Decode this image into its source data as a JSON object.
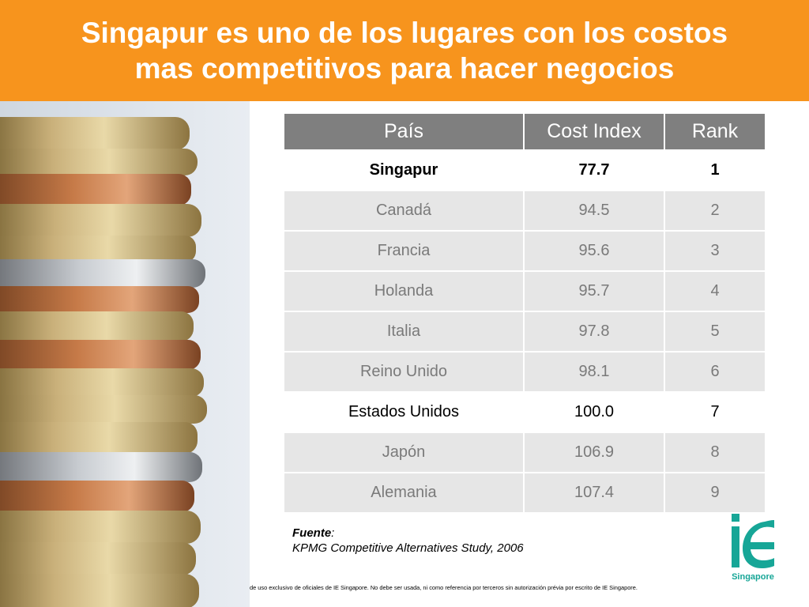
{
  "header": {
    "title_line1": "Singapur es uno de los lugares con los costos",
    "title_line2": "mas competitivos para hacer negocios"
  },
  "colors": {
    "header_bg": "#f7941d",
    "table_header_bg": "#7f7f7f",
    "row_bg": "#e6e6e6",
    "logo": "#17a697"
  },
  "image": {
    "icon": "coin-stack-photo"
  },
  "table": {
    "headers": [
      "País",
      "Cost Index",
      "Rank"
    ],
    "rows": [
      {
        "pais": "Singapur",
        "cost_index": "77.7",
        "rank": "1"
      },
      {
        "pais": "Canadá",
        "cost_index": "94.5",
        "rank": "2"
      },
      {
        "pais": "Francia",
        "cost_index": "95.6",
        "rank": "3"
      },
      {
        "pais": "Holanda",
        "cost_index": "95.7",
        "rank": "4"
      },
      {
        "pais": "Italia",
        "cost_index": "97.8",
        "rank": "5"
      },
      {
        "pais": "Reino Unido",
        "cost_index": "98.1",
        "rank": "6"
      },
      {
        "pais": "Estados Unidos",
        "cost_index": "100.0",
        "rank": "7"
      },
      {
        "pais": "Japón",
        "cost_index": "106.9",
        "rank": "8"
      },
      {
        "pais": "Alemania",
        "cost_index": "107.4",
        "rank": "9"
      }
    ]
  },
  "source": {
    "label": "Fuente",
    "colon": ":",
    "text": "KPMG Competitive Alternatives Study, 2006"
  },
  "footer": {
    "disclaimer": "de uso exclusivo de oficiales de IE Singapore. No debe ser usada, ni como referencia por terceros sin autorización prévia por escrito de IE Singapore."
  },
  "logo": {
    "icon": "ie-logo",
    "mark": "ie",
    "subtitle": "Singapore"
  }
}
